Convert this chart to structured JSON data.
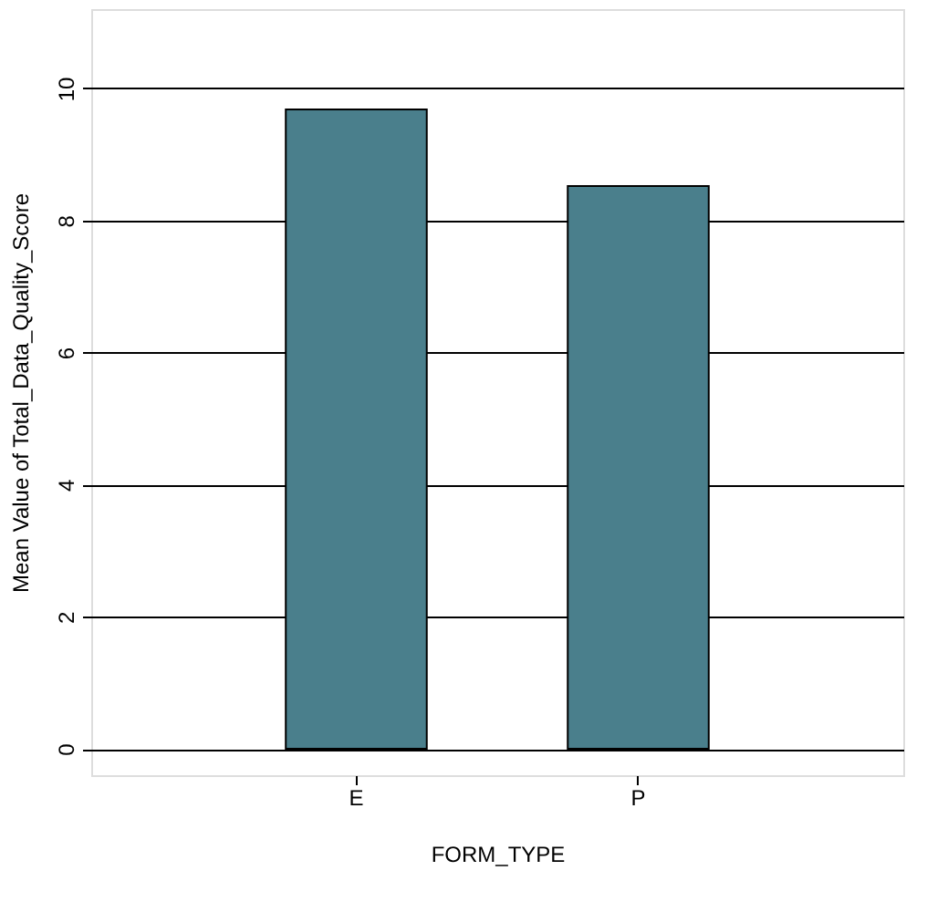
{
  "chart_data": {
    "type": "bar",
    "categories": [
      "E",
      "P"
    ],
    "values": [
      9.68,
      8.52
    ],
    "color": "#4a7f8c",
    "xlabel": "FORM_TYPE",
    "ylabel": "Mean Value of Total_Data_Quality_Score",
    "ylim": [
      -0.4,
      11.2
    ],
    "yticks": [
      0,
      2,
      4,
      6,
      8,
      10
    ],
    "grid": "y"
  }
}
